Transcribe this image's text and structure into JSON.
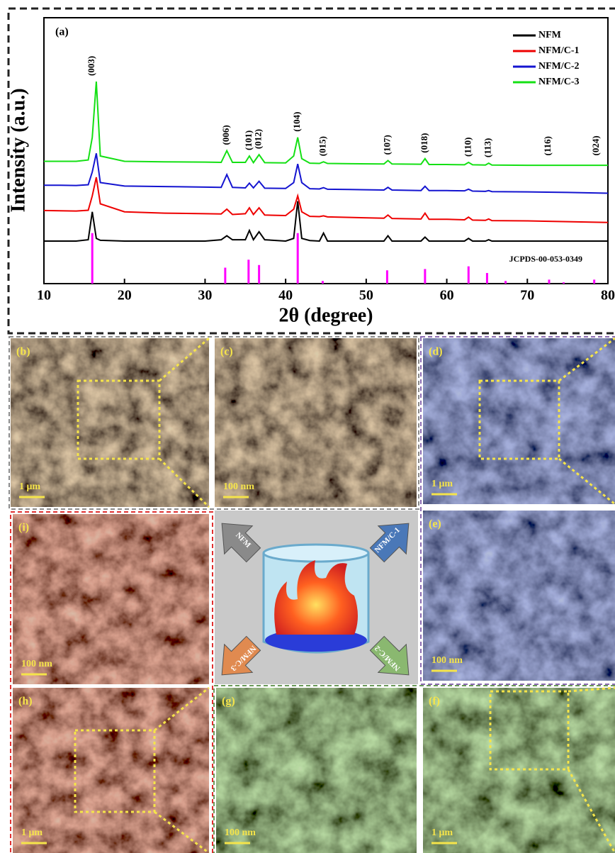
{
  "chart_data": {
    "type": "line",
    "panel_label": "(a)",
    "x_label": "2θ (degree)",
    "y_label": "Intensity (a.u.)",
    "xlim": [
      10,
      80
    ],
    "xticks": [
      10,
      20,
      30,
      40,
      50,
      60,
      70,
      80
    ],
    "ylim": [
      0,
      100
    ],
    "x": [
      10,
      12,
      14,
      15.5,
      16,
      16.5,
      17,
      20,
      25,
      30,
      32,
      32.7,
      33.4,
      35,
      35.5,
      36,
      36.7,
      37.4,
      40,
      41,
      41.5,
      42,
      43,
      44.2,
      44.7,
      45.2,
      48,
      52.2,
      52.7,
      53.2,
      56.8,
      57.3,
      57.8,
      60,
      62.2,
      62.7,
      63.2,
      64.8,
      65.2,
      65.6,
      70,
      75,
      80
    ],
    "series": [
      {
        "name": "NFM",
        "color": "#000000",
        "values": [
          16,
          16,
          16,
          16.5,
          27,
          17,
          16.3,
          16,
          16,
          16,
          16.5,
          18,
          16.5,
          16.5,
          20,
          16.5,
          19.5,
          16.5,
          16,
          17,
          31,
          17,
          16.2,
          16,
          19,
          16,
          16,
          16,
          18,
          16,
          16,
          17.5,
          16,
          16,
          16,
          17,
          16,
          16,
          16.5,
          16,
          16,
          16,
          16
        ]
      },
      {
        "name": "NFM/C-1",
        "color": "#ee0000",
        "values": [
          27.5,
          27.4,
          27.3,
          27.6,
          33,
          40,
          30,
          27,
          26.5,
          26.3,
          26.2,
          28,
          26,
          26.3,
          28.5,
          26,
          28.5,
          25.8,
          25.6,
          28,
          33,
          27,
          25.3,
          25.2,
          25.5,
          25.1,
          24.9,
          24.6,
          25.8,
          24.5,
          24.3,
          26.5,
          24.2,
          24.2,
          24,
          25,
          23.9,
          23.8,
          24.3,
          23.7,
          23.6,
          23.3,
          23
        ]
      },
      {
        "name": "NFM/C-2",
        "color": "#1414d0",
        "values": [
          37,
          37,
          36.9,
          37.2,
          42,
          49,
          38,
          36.7,
          36.5,
          36.3,
          36.2,
          41,
          36.2,
          36,
          37.8,
          36,
          38.5,
          35.9,
          35.8,
          38,
          45,
          38,
          35.7,
          35.6,
          36.1,
          35.5,
          35.4,
          35.2,
          36.2,
          35.2,
          35,
          36.6,
          35,
          35,
          34.9,
          35.5,
          34.8,
          34.7,
          35,
          34.6,
          34.5,
          34.3,
          34
        ]
      },
      {
        "name": "NFM/C-3",
        "color": "#14e014",
        "values": [
          46,
          46,
          46,
          46.5,
          55,
          76,
          48,
          46,
          45.8,
          45.7,
          45.6,
          50,
          45.6,
          45.6,
          48,
          45.5,
          48.5,
          45.5,
          45.4,
          48,
          55,
          47,
          45.3,
          45.2,
          45.8,
          45.2,
          45.1,
          45,
          46.3,
          45,
          44.9,
          47,
          44.8,
          44.8,
          44.7,
          45.6,
          44.7,
          44.6,
          45.3,
          44.6,
          44.5,
          44.5,
          44.5
        ]
      }
    ],
    "reference": {
      "name": "JCPDS-00-053-0349",
      "color": "#ff00ff",
      "x": [
        16,
        32.5,
        35.4,
        36.7,
        41.5,
        44.6,
        52.6,
        57.3,
        62.7,
        65,
        67.3,
        72.7,
        74.5,
        78.3
      ],
      "values": [
        19,
        6,
        9,
        7,
        19,
        1,
        5,
        5.5,
        6.5,
        4,
        1,
        1.5,
        0.5,
        1.5
      ]
    },
    "annotations": [
      {
        "text": "(003)",
        "x": 16
      },
      {
        "text": "(006)",
        "x": 32.7
      },
      {
        "text": "(101)",
        "x": 35.5
      },
      {
        "text": "(012)",
        "x": 36.7
      },
      {
        "text": "(104)",
        "x": 41.5
      },
      {
        "text": "(015)",
        "x": 44.7
      },
      {
        "text": "(107)",
        "x": 52.7
      },
      {
        "text": "(018)",
        "x": 57.3
      },
      {
        "text": "(110)",
        "x": 62.7
      },
      {
        "text": "(113)",
        "x": 65.2
      },
      {
        "text": "(116)",
        "x": 72.6
      },
      {
        "text": "(024)",
        "x": 78.6
      }
    ]
  },
  "panels": [
    {
      "label": "(b)",
      "scale": "1 μm"
    },
    {
      "label": "(c)",
      "scale": "100 nm"
    },
    {
      "label": "(d)",
      "scale": "1 μm"
    },
    {
      "label": "(e)",
      "scale": "100 nm"
    },
    {
      "label": "(i)",
      "scale": "100 nm"
    },
    {
      "label": "(h)",
      "scale": "1 μm"
    },
    {
      "label": "(g)",
      "scale": "100 nm"
    },
    {
      "label": "(f)",
      "scale": "1 μm"
    }
  ],
  "center": {
    "arrows": [
      "NFM",
      "NFM/C-1",
      "NFM/C-3",
      "NFM/C-2"
    ]
  }
}
